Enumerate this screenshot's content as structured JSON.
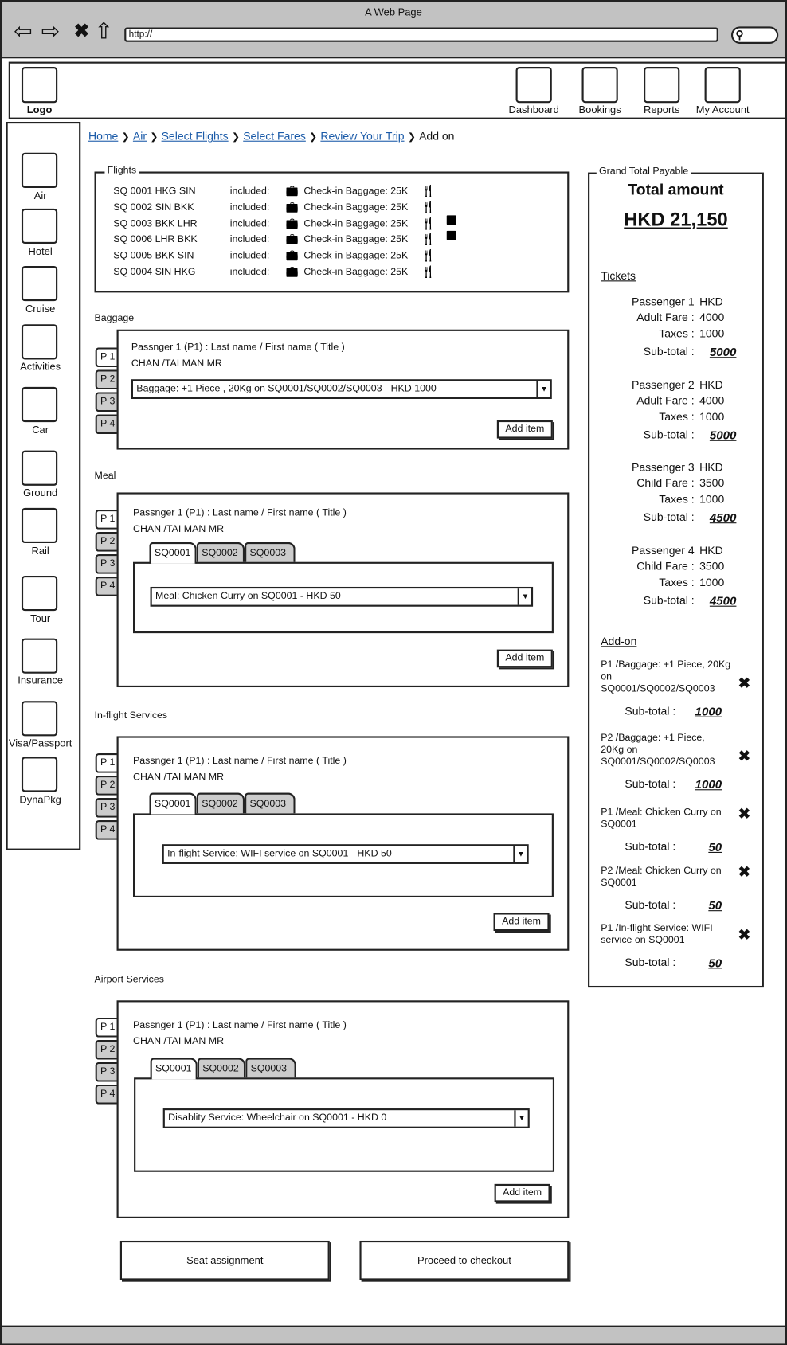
{
  "browser": {
    "title": "A Web Page",
    "url": "http://",
    "search_icon": "magnifier"
  },
  "header": {
    "logo": "Logo",
    "nav": [
      "Dashboard",
      "Bookings",
      "Reports",
      "My Account"
    ]
  },
  "sidebar": {
    "items": [
      "Air",
      "Hotel",
      "Cruise",
      "Activities",
      "Car",
      "Ground",
      "Rail",
      "Tour",
      "Insurance",
      "Visa/Passport",
      "DynaPkg"
    ]
  },
  "breadcrumb": {
    "links": [
      "Home",
      "Air",
      "Select Flights",
      "Select Fares",
      "Review Your Trip"
    ],
    "current": "Add on"
  },
  "flights": {
    "legend": "Flights",
    "rows": [
      {
        "flight": "SQ 0001 HKG SIN",
        "included": "included:",
        "baggage": "Check-in Baggage: 25K",
        "meal": true,
        "wifi": false
      },
      {
        "flight": "SQ 0002 SIN BKK",
        "included": "included:",
        "baggage": "Check-in Baggage: 25K",
        "meal": true,
        "wifi": false
      },
      {
        "flight": "SQ 0003 BKK LHR",
        "included": "included:",
        "baggage": "Check-in Baggage: 25K",
        "meal": true,
        "wifi": true
      },
      {
        "flight": "SQ 0006 LHR BKK",
        "included": "included:",
        "baggage": "Check-in Baggage: 25K",
        "meal": true,
        "wifi": true
      },
      {
        "flight": "SQ 0005 BKK SIN",
        "included": "included:",
        "baggage": "Check-in Baggage: 25K",
        "meal": true,
        "wifi": false
      },
      {
        "flight": "SQ 0004 SIN HKG",
        "included": "included:",
        "baggage": "Check-in Baggage: 25K",
        "meal": true,
        "wifi": false
      }
    ]
  },
  "sections": [
    {
      "label": "Baggage",
      "passenger_heading": "Passnger 1 (P1) : Last name / First name ( Title )",
      "passenger_name": "CHAN /TAI MAN  MR",
      "side_tabs": [
        "P 1",
        "P 2",
        "P 3",
        "P 4"
      ],
      "flight_tabs": [],
      "select": "Baggage:  +1 Piece , 20Kg  on SQ0001/SQ0002/SQ0003 -   HKD 1000",
      "add": "Add item"
    },
    {
      "label": "Meal",
      "passenger_heading": "Passnger 1 (P1) : Last name / First name ( Title )",
      "passenger_name": "CHAN /TAI MAN  MR",
      "side_tabs": [
        "P 1",
        "P 2",
        "P 3",
        "P 4"
      ],
      "flight_tabs": [
        "SQ0001",
        "SQ0002",
        "SQ0003"
      ],
      "select": "Meal: Chicken Curry  on SQ0001 - HKD 50",
      "add": "Add item"
    },
    {
      "label": "In-flight Services",
      "passenger_heading": "Passnger 1 (P1) : Last name / First name ( Title )",
      "passenger_name": "CHAN /TAI MAN  MR",
      "side_tabs": [
        "P 1",
        "P 2",
        "P 3",
        "P 4"
      ],
      "flight_tabs": [
        "SQ0001",
        "SQ0002",
        "SQ0003"
      ],
      "select": "In-flight Service:  WIFI service on SQ0001 -   HKD 50",
      "add": "Add item"
    },
    {
      "label": "Airport Services",
      "passenger_heading": "Passnger 1 (P1) : Last name / First name ( Title )",
      "passenger_name": "CHAN /TAI MAN  MR",
      "side_tabs": [
        "P 1",
        "P 2",
        "P 3",
        "P 4"
      ],
      "flight_tabs": [
        "SQ0001",
        "SQ0002",
        "SQ0003"
      ],
      "select": "Disablity Service:  Wheelchair on SQ0001 -   HKD 0",
      "add": "Add item"
    }
  ],
  "actions": {
    "seat": "Seat assignment",
    "checkout": "Proceed to checkout"
  },
  "summary": {
    "legend": "Grand Total Payable",
    "total_label": "Total amount",
    "total": "HKD 21,150",
    "tickets_label": "Tickets",
    "passengers": [
      {
        "name": "Passenger 1",
        "currency": "HKD",
        "fare_label": "Adult  Fare :",
        "fare": "4000",
        "tax_label": "Taxes :",
        "tax": "1000",
        "sub_label": "Sub-total :",
        "sub": "5000"
      },
      {
        "name": "Passenger 2",
        "currency": "HKD",
        "fare_label": "Adult  Fare :",
        "fare": "4000",
        "tax_label": "Taxes :",
        "tax": "1000",
        "sub_label": "Sub-total :",
        "sub": "5000"
      },
      {
        "name": "Passenger 3",
        "currency": "HKD",
        "fare_label": "Child  Fare :",
        "fare": "3500",
        "tax_label": "Taxes :",
        "tax": "1000",
        "sub_label": "Sub-total :",
        "sub": "4500"
      },
      {
        "name": "Passenger 4",
        "currency": "HKD",
        "fare_label": "Child  Fare :",
        "fare": "3500",
        "tax_label": "Taxes :",
        "tax": "1000",
        "sub_label": "Sub-total :",
        "sub": "4500"
      }
    ],
    "addon_label": "Add-on",
    "addons": [
      {
        "lines": [
          "P1 /Baggage: +1 Piece, 20Kg",
          "on",
          "SQ0001/SQ0002/SQ0003"
        ],
        "sub_label": "Sub-total :",
        "sub": "1000"
      },
      {
        "lines": [
          "P2 /Baggage: +1 Piece,",
          "20Kg on",
          "SQ0001/SQ0002/SQ0003"
        ],
        "sub_label": "Sub-total :",
        "sub": "1000"
      },
      {
        "lines": [
          "P1 /Meal: Chicken Curry  on",
          "SQ0001"
        ],
        "sub_label": "Sub-total :",
        "sub": "50"
      },
      {
        "lines": [
          "P2 /Meal: Chicken Curry  on",
          "SQ0001"
        ],
        "sub_label": "Sub-total :",
        "sub": "50"
      },
      {
        "lines": [
          "P1 /In-flight Service:  WIFI",
          "service on SQ0001"
        ],
        "sub_label": "Sub-total :",
        "sub": "50"
      }
    ]
  }
}
